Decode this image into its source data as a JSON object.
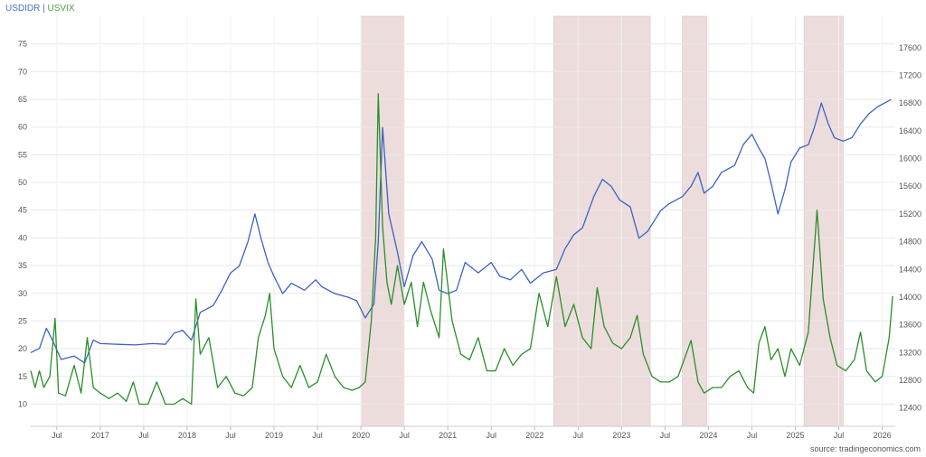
{
  "header": {
    "series_a": "USDIDR",
    "separator": " | ",
    "series_b": "USVIX"
  },
  "source": "source: tradingeconomics.com",
  "colors": {
    "usdidr": "#3b63c4",
    "usvix": "#2a8f2a",
    "recession": "#eddcdc",
    "grid": "#e8e8e8"
  },
  "chart_data": {
    "type": "line",
    "title": "",
    "xlabel": "",
    "x_ticks": [
      {
        "label": "Jul",
        "t": 2016.5
      },
      {
        "label": "2017",
        "t": 2017.0
      },
      {
        "label": "Jul",
        "t": 2017.5
      },
      {
        "label": "2018",
        "t": 2018.0
      },
      {
        "label": "Jul",
        "t": 2018.5
      },
      {
        "label": "2019",
        "t": 2019.0
      },
      {
        "label": "Jul",
        "t": 2019.5
      },
      {
        "label": "2020",
        "t": 2020.0
      },
      {
        "label": "Jul",
        "t": 2020.5
      },
      {
        "label": "2021",
        "t": 2021.0
      },
      {
        "label": "Jul",
        "t": 2021.5
      },
      {
        "label": "2022",
        "t": 2022.0
      },
      {
        "label": "Jul",
        "t": 2022.5
      },
      {
        "label": "2023",
        "t": 2023.0
      },
      {
        "label": "Jul",
        "t": 2023.5
      },
      {
        "label": "2024",
        "t": 2024.0
      },
      {
        "label": "Jul",
        "t": 2024.5
      },
      {
        "label": "2025",
        "t": 2025.0
      },
      {
        "label": "Jul",
        "t": 2025.5
      },
      {
        "label": "2026",
        "t": 2026.0
      }
    ],
    "x_range": [
      2016.2,
      2026.15
    ],
    "left_axis": {
      "series": "USVIX",
      "range": [
        6,
        80
      ],
      "ticks": [
        10,
        15,
        20,
        25,
        30,
        35,
        40,
        45,
        50,
        55,
        60,
        65,
        70,
        75
      ]
    },
    "right_axis": {
      "series": "USDIDR",
      "range": [
        12136,
        18053
      ],
      "ticks": [
        12400,
        12800,
        13200,
        13600,
        14000,
        14400,
        14800,
        15200,
        15600,
        16000,
        16400,
        16800,
        17200,
        17600
      ]
    },
    "grid": true,
    "shaded_periods": [
      {
        "start": 2020.0,
        "end": 2020.5
      },
      {
        "start": 2022.22,
        "end": 2023.33
      },
      {
        "start": 2023.7,
        "end": 2023.98
      },
      {
        "start": 2025.1,
        "end": 2025.55
      }
    ],
    "series": [
      {
        "name": "USDIDR",
        "axis": "right",
        "points": [
          [
            2016.2,
            13200
          ],
          [
            2016.3,
            13260
          ],
          [
            2016.38,
            13550
          ],
          [
            2016.45,
            13380
          ],
          [
            2016.55,
            13100
          ],
          [
            2016.7,
            13150
          ],
          [
            2016.82,
            13050
          ],
          [
            2016.92,
            13380
          ],
          [
            2017.0,
            13330
          ],
          [
            2017.2,
            13320
          ],
          [
            2017.4,
            13310
          ],
          [
            2017.6,
            13330
          ],
          [
            2017.75,
            13320
          ],
          [
            2017.85,
            13480
          ],
          [
            2017.95,
            13520
          ],
          [
            2018.05,
            13380
          ],
          [
            2018.15,
            13780
          ],
          [
            2018.3,
            13880
          ],
          [
            2018.4,
            14100
          ],
          [
            2018.5,
            14350
          ],
          [
            2018.6,
            14450
          ],
          [
            2018.7,
            14800
          ],
          [
            2018.78,
            15200
          ],
          [
            2018.85,
            14850
          ],
          [
            2018.93,
            14500
          ],
          [
            2019.0,
            14300
          ],
          [
            2019.1,
            14050
          ],
          [
            2019.2,
            14200
          ],
          [
            2019.35,
            14100
          ],
          [
            2019.48,
            14250
          ],
          [
            2019.55,
            14150
          ],
          [
            2019.7,
            14050
          ],
          [
            2019.85,
            14000
          ],
          [
            2019.95,
            13950
          ],
          [
            2020.05,
            13700
          ],
          [
            2020.15,
            13900
          ],
          [
            2020.2,
            14800
          ],
          [
            2020.25,
            16450
          ],
          [
            2020.32,
            15200
          ],
          [
            2020.42,
            14650
          ],
          [
            2020.5,
            14150
          ],
          [
            2020.6,
            14600
          ],
          [
            2020.7,
            14800
          ],
          [
            2020.82,
            14550
          ],
          [
            2020.9,
            14100
          ],
          [
            2021.0,
            14050
          ],
          [
            2021.1,
            14100
          ],
          [
            2021.2,
            14500
          ],
          [
            2021.35,
            14350
          ],
          [
            2021.5,
            14500
          ],
          [
            2021.6,
            14300
          ],
          [
            2021.72,
            14250
          ],
          [
            2021.85,
            14400
          ],
          [
            2021.95,
            14200
          ],
          [
            2022.1,
            14350
          ],
          [
            2022.25,
            14400
          ],
          [
            2022.35,
            14700
          ],
          [
            2022.45,
            14900
          ],
          [
            2022.55,
            15000
          ],
          [
            2022.68,
            15450
          ],
          [
            2022.78,
            15700
          ],
          [
            2022.88,
            15600
          ],
          [
            2022.98,
            15400
          ],
          [
            2023.1,
            15300
          ],
          [
            2023.2,
            14850
          ],
          [
            2023.3,
            14950
          ],
          [
            2023.45,
            15250
          ],
          [
            2023.55,
            15350
          ],
          [
            2023.7,
            15450
          ],
          [
            2023.8,
            15600
          ],
          [
            2023.88,
            15800
          ],
          [
            2023.95,
            15500
          ],
          [
            2024.05,
            15600
          ],
          [
            2024.15,
            15800
          ],
          [
            2024.3,
            15900
          ],
          [
            2024.4,
            16200
          ],
          [
            2024.5,
            16350
          ],
          [
            2024.58,
            16150
          ],
          [
            2024.65,
            16000
          ],
          [
            2024.72,
            15650
          ],
          [
            2024.8,
            15200
          ],
          [
            2024.88,
            15550
          ],
          [
            2024.95,
            15950
          ],
          [
            2025.05,
            16150
          ],
          [
            2025.15,
            16200
          ],
          [
            2025.22,
            16450
          ],
          [
            2025.3,
            16800
          ],
          [
            2025.38,
            16500
          ],
          [
            2025.45,
            16300
          ],
          [
            2025.55,
            16250
          ],
          [
            2025.65,
            16300
          ],
          [
            2025.75,
            16500
          ],
          [
            2025.85,
            16650
          ],
          [
            2025.95,
            16750
          ],
          [
            2026.1,
            16850
          ]
        ]
      },
      {
        "name": "USVIX",
        "axis": "left",
        "points": [
          [
            2016.2,
            16
          ],
          [
            2016.25,
            13
          ],
          [
            2016.3,
            16
          ],
          [
            2016.35,
            13
          ],
          [
            2016.42,
            15
          ],
          [
            2016.48,
            25.5
          ],
          [
            2016.52,
            12
          ],
          [
            2016.6,
            11.5
          ],
          [
            2016.7,
            17
          ],
          [
            2016.78,
            12
          ],
          [
            2016.85,
            22
          ],
          [
            2016.92,
            13
          ],
          [
            2017.0,
            12
          ],
          [
            2017.1,
            11
          ],
          [
            2017.2,
            12
          ],
          [
            2017.3,
            10.5
          ],
          [
            2017.38,
            14
          ],
          [
            2017.45,
            10
          ],
          [
            2017.55,
            10
          ],
          [
            2017.65,
            14
          ],
          [
            2017.75,
            10
          ],
          [
            2017.85,
            10
          ],
          [
            2017.95,
            11
          ],
          [
            2018.05,
            10
          ],
          [
            2018.1,
            29
          ],
          [
            2018.15,
            19
          ],
          [
            2018.25,
            22
          ],
          [
            2018.35,
            13
          ],
          [
            2018.45,
            15
          ],
          [
            2018.55,
            12
          ],
          [
            2018.65,
            11.5
          ],
          [
            2018.75,
            13
          ],
          [
            2018.82,
            22
          ],
          [
            2018.9,
            26
          ],
          [
            2018.95,
            30
          ],
          [
            2019.0,
            20
          ],
          [
            2019.1,
            15
          ],
          [
            2019.2,
            13
          ],
          [
            2019.3,
            17
          ],
          [
            2019.4,
            13
          ],
          [
            2019.5,
            14
          ],
          [
            2019.6,
            19
          ],
          [
            2019.7,
            15
          ],
          [
            2019.8,
            13
          ],
          [
            2019.9,
            12.5
          ],
          [
            2019.98,
            13
          ],
          [
            2020.05,
            14
          ],
          [
            2020.12,
            25
          ],
          [
            2020.17,
            40
          ],
          [
            2020.2,
            66
          ],
          [
            2020.25,
            42
          ],
          [
            2020.3,
            32
          ],
          [
            2020.35,
            28
          ],
          [
            2020.42,
            35
          ],
          [
            2020.5,
            28
          ],
          [
            2020.58,
            32
          ],
          [
            2020.65,
            24
          ],
          [
            2020.72,
            32
          ],
          [
            2020.8,
            27
          ],
          [
            2020.9,
            22
          ],
          [
            2020.95,
            38
          ],
          [
            2021.05,
            25
          ],
          [
            2021.15,
            19
          ],
          [
            2021.25,
            18
          ],
          [
            2021.35,
            22
          ],
          [
            2021.45,
            16
          ],
          [
            2021.55,
            16
          ],
          [
            2021.65,
            20
          ],
          [
            2021.75,
            17
          ],
          [
            2021.85,
            19
          ],
          [
            2021.95,
            20
          ],
          [
            2022.05,
            30
          ],
          [
            2022.15,
            24
          ],
          [
            2022.25,
            33
          ],
          [
            2022.35,
            24
          ],
          [
            2022.45,
            28
          ],
          [
            2022.55,
            22
          ],
          [
            2022.65,
            20
          ],
          [
            2022.72,
            31
          ],
          [
            2022.8,
            24
          ],
          [
            2022.9,
            21
          ],
          [
            2023.0,
            20
          ],
          [
            2023.1,
            22
          ],
          [
            2023.18,
            26
          ],
          [
            2023.25,
            19
          ],
          [
            2023.35,
            15
          ],
          [
            2023.45,
            14
          ],
          [
            2023.55,
            14
          ],
          [
            2023.65,
            15
          ],
          [
            2023.72,
            18
          ],
          [
            2023.8,
            21.5
          ],
          [
            2023.88,
            14
          ],
          [
            2023.95,
            12
          ],
          [
            2024.05,
            13
          ],
          [
            2024.15,
            13
          ],
          [
            2024.25,
            15
          ],
          [
            2024.35,
            16
          ],
          [
            2024.45,
            13
          ],
          [
            2024.52,
            12
          ],
          [
            2024.58,
            21
          ],
          [
            2024.65,
            24
          ],
          [
            2024.72,
            18
          ],
          [
            2024.8,
            20
          ],
          [
            2024.88,
            15
          ],
          [
            2024.95,
            20
          ],
          [
            2025.05,
            17
          ],
          [
            2025.15,
            23
          ],
          [
            2025.25,
            45
          ],
          [
            2025.32,
            29
          ],
          [
            2025.4,
            22
          ],
          [
            2025.48,
            17
          ],
          [
            2025.58,
            16
          ],
          [
            2025.68,
            18
          ],
          [
            2025.75,
            23
          ],
          [
            2025.82,
            16
          ],
          [
            2025.92,
            14
          ],
          [
            2026.0,
            15
          ],
          [
            2026.08,
            22
          ],
          [
            2026.12,
            29.5
          ]
        ]
      }
    ]
  }
}
